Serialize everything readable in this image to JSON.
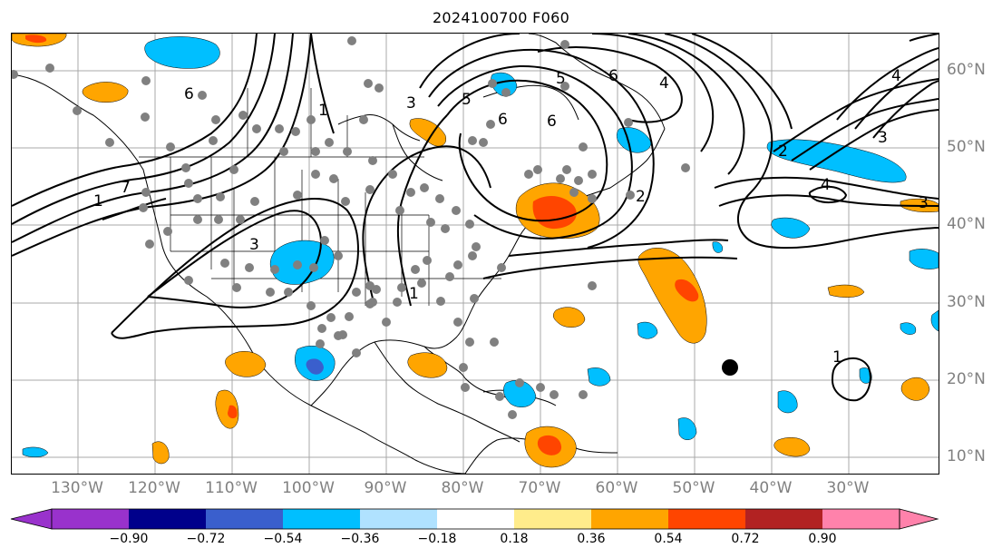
{
  "title": "2024100700 F060",
  "lon_labels": [
    "130°W",
    "120°W",
    "110°W",
    "100°W",
    "90°W",
    "80°W",
    "70°W",
    "60°W",
    "50°W",
    "40°W",
    "30°W"
  ],
  "lat_labels": [
    "60°N",
    "50°N",
    "40°N",
    "30°N",
    "20°N",
    "10°N"
  ],
  "colorbar": {
    "tick_labels": [
      "−0.90",
      "−0.72",
      "−0.54",
      "−0.36",
      "−0.18",
      "0.18",
      "0.36",
      "0.54",
      "0.72",
      "0.90"
    ],
    "colors": [
      "#9932cc",
      "#00008b",
      "#3a5fcd",
      "#00bfff",
      "#b0e2ff",
      "#ffffff",
      "#ffec8b",
      "#ffa500",
      "#ff4500",
      "#b22222",
      "#ff82ab"
    ]
  },
  "colors": {
    "orange": "#ffa500",
    "red_orange": "#ff4500",
    "dark_red": "#b22222",
    "cyan": "#00bfff",
    "royal_blue": "#3a5fcd",
    "station": "#808080",
    "contour": "#000000"
  },
  "contour_labels": [
    "6",
    "5",
    "6",
    "6",
    "4",
    "4",
    "3",
    "2",
    "7",
    "3",
    "3",
    "1",
    "3",
    "4",
    "5",
    "2",
    "1",
    "6",
    "1",
    "1"
  ]
}
